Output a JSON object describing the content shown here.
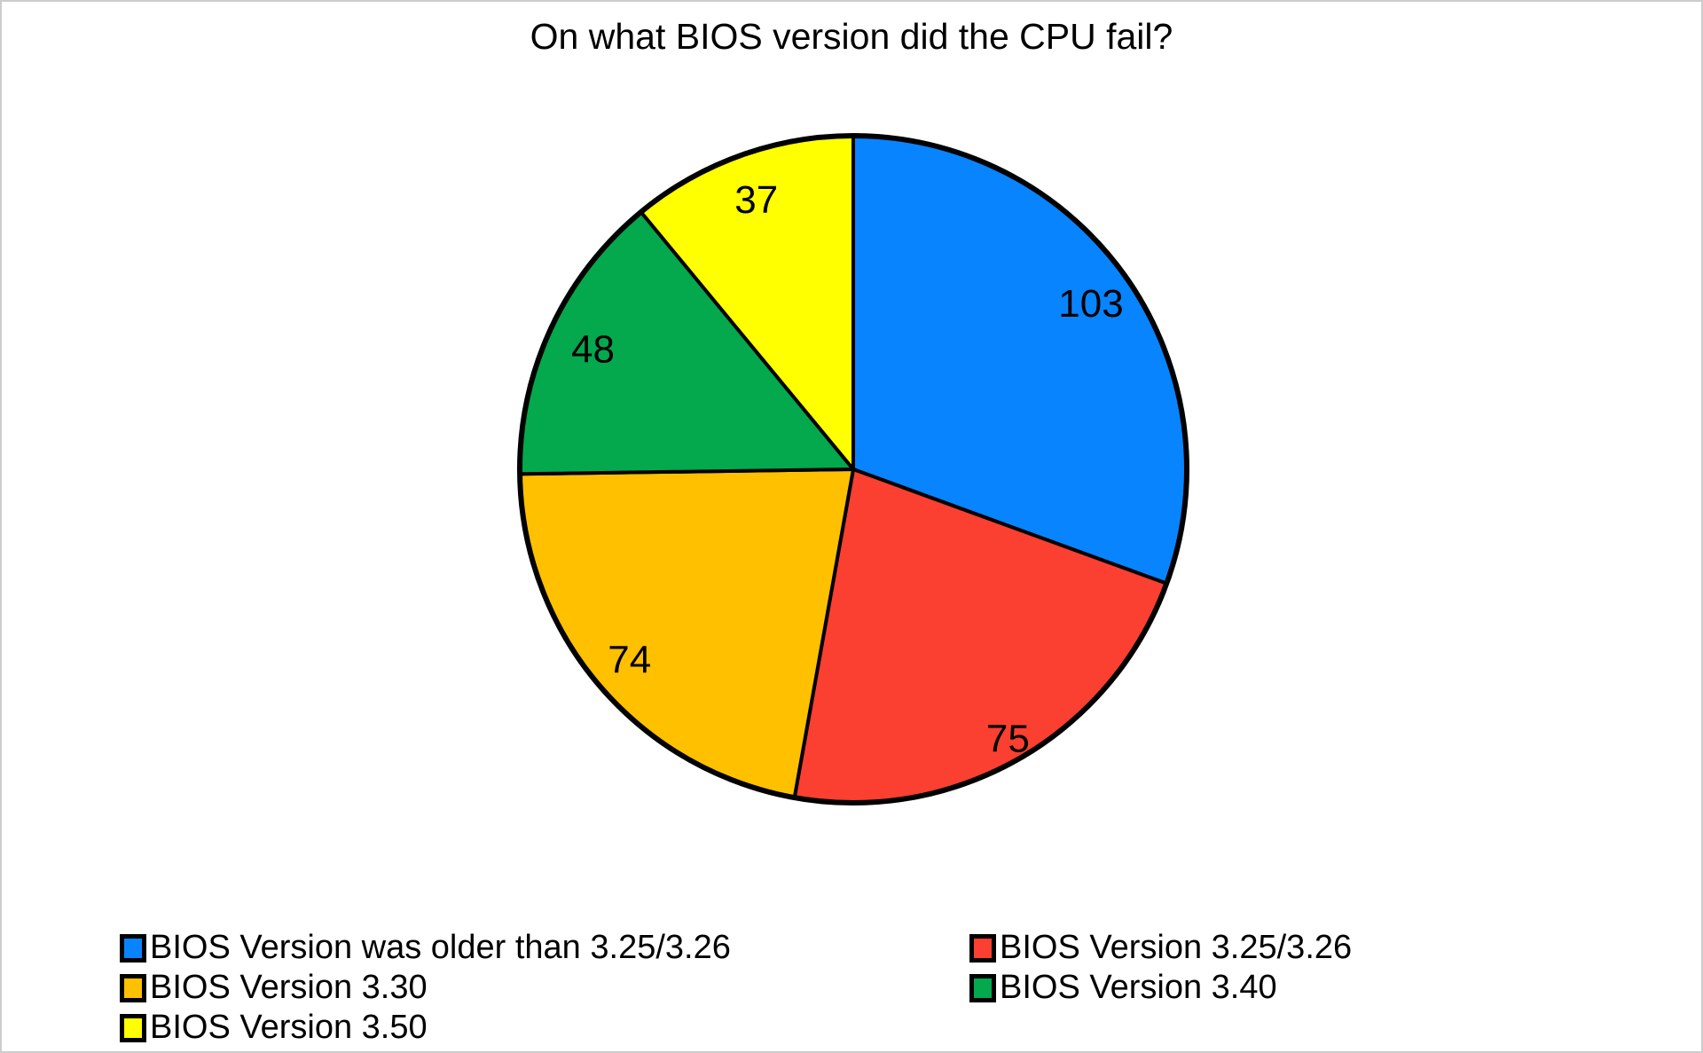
{
  "page": {
    "background_color": "#ffffff",
    "frame_color": "#cccccc"
  },
  "chart_data": {
    "type": "pie",
    "title": "On what BIOS version did the CPU fail?",
    "total": 337,
    "start_angle_deg": 0,
    "direction": "clockwise",
    "stroke_color": "#000000",
    "label_color": "#000000",
    "legend_position": "bottom-two-columns",
    "slices": [
      {
        "label": "BIOS Version was older than 3.25/3.26",
        "value": 103,
        "color": "#0884ff"
      },
      {
        "label": "BIOS Version 3.25/3.26",
        "value": 75,
        "color": "#fb3f30"
      },
      {
        "label": "BIOS Version 3.30",
        "value": 74,
        "color": "#ffc000"
      },
      {
        "label": "BIOS Version 3.40",
        "value": 48,
        "color": "#04a84d"
      },
      {
        "label": "BIOS Version 3.50",
        "value": 37,
        "color": "#ffff00"
      }
    ]
  }
}
